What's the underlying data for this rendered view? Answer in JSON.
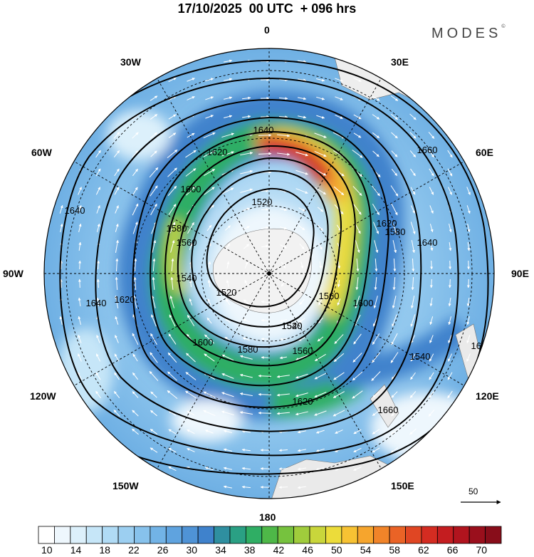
{
  "title": "17/10/2025  00 UTC  + 096 hrs",
  "brand": "MODES",
  "brand_mark": "©",
  "longitude_labels": {
    "lon_0": "0",
    "lon_30e": "30E",
    "lon_60e": "60E",
    "lon_90e": "90E",
    "lon_120e": "120E",
    "lon_150e": "150E",
    "lon_180": "180",
    "lon_150w": "150W",
    "lon_120w": "120W",
    "lon_90w": "90W",
    "lon_60w": "60W",
    "lon_30w": "30W"
  },
  "contour_labels": [
    "1640",
    "1620",
    "1600",
    "1580",
    "1560",
    "1540",
    "1520",
    "1660",
    "1640",
    "1620",
    "1600",
    "1580",
    "1560",
    "1540",
    "1520",
    "1660",
    "1640",
    "1620",
    "1660",
    "1640",
    "1620",
    "1600",
    "1580",
    "1560",
    "1540",
    "1520"
  ],
  "contour_levels": [
    1520,
    1540,
    1560,
    1580,
    1600,
    1620,
    1640,
    1660
  ],
  "reference_vector": "50",
  "colorbar": {
    "labels": [
      "10",
      "14",
      "18",
      "22",
      "26",
      "30",
      "34",
      "38",
      "42",
      "46",
      "50",
      "54",
      "58",
      "62",
      "66",
      "70"
    ],
    "colors": [
      "#ffffff",
      "#eef7fd",
      "#dcf0fb",
      "#c6e6f8",
      "#b0dbf5",
      "#9ccff1",
      "#87c2ec",
      "#72b3e6",
      "#5fa3df",
      "#4f93d6",
      "#3f82cc",
      "#2f8fa0",
      "#2aa084",
      "#2fae64",
      "#4eb848",
      "#76c23e",
      "#a0cc3c",
      "#c9d63b",
      "#ecdc3a",
      "#f7c233",
      "#f6a52d",
      "#f18429",
      "#ea6326",
      "#e04623",
      "#d42c21",
      "#c41d20",
      "#b1141e",
      "#9a0f1c",
      "#880d1a"
    ]
  }
}
